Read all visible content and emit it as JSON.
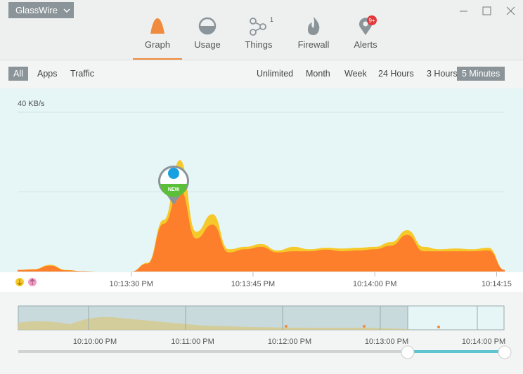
{
  "app": {
    "title": "GlassWire"
  },
  "tabs": [
    {
      "label": "Graph",
      "selected": true
    },
    {
      "label": "Usage",
      "selected": false
    },
    {
      "label": "Things",
      "selected": false
    },
    {
      "label": "Firewall",
      "selected": false
    },
    {
      "label": "Alerts",
      "selected": false
    }
  ],
  "things_badge": "1",
  "alerts_badge": "9+",
  "filters": [
    {
      "label": "All",
      "selected": true
    },
    {
      "label": "Apps",
      "selected": false
    },
    {
      "label": "Traffic",
      "selected": false
    }
  ],
  "ranges": [
    {
      "label": "Unlimited",
      "selected": false
    },
    {
      "label": "Month",
      "selected": false
    },
    {
      "label": "Week",
      "selected": false
    },
    {
      "label": "24 Hours",
      "selected": false
    },
    {
      "label": "3 Hours",
      "selected": false
    },
    {
      "label": "5 Minutes",
      "selected": true
    }
  ],
  "chart_data": {
    "type": "area",
    "x": [
      "10:13:16",
      "10:13:18",
      "10:13:20",
      "10:13:22",
      "10:13:24",
      "10:13:26",
      "10:13:28",
      "10:13:30",
      "10:13:32",
      "10:13:34",
      "10:13:36",
      "10:13:38",
      "10:13:40",
      "10:13:42",
      "10:13:44",
      "10:13:46",
      "10:13:48",
      "10:13:50",
      "10:13:52",
      "10:13:54",
      "10:13:56",
      "10:13:58",
      "10:14:00",
      "10:14:02",
      "10:14:04",
      "10:14:06",
      "10:14:08",
      "10:14:10",
      "10:14:12",
      "10:14:14",
      "10:14:16"
    ],
    "series": [
      {
        "color": "#f6c92b",
        "values": [
          0.4,
          0.6,
          1.7,
          0.4,
          0.1,
          0,
          0,
          0,
          2.2,
          13,
          28,
          10,
          14.4,
          5.6,
          6.2,
          6.9,
          5.3,
          6.2,
          5.6,
          6,
          5.8,
          6,
          6.2,
          7.4,
          10.4,
          6.2,
          5.6,
          5.8,
          5.6,
          6,
          0.4
        ]
      },
      {
        "color": "#fd7f2c",
        "values": [
          0.4,
          0.5,
          1.5,
          0.3,
          0.1,
          0,
          0,
          0,
          2,
          12,
          20.6,
          8.3,
          11.8,
          4.8,
          5.6,
          6.2,
          4.8,
          5.1,
          5.1,
          5.5,
          5.1,
          5.3,
          5.6,
          6.5,
          9.2,
          5.1,
          5.1,
          5.1,
          5.1,
          5.3,
          0.4
        ]
      }
    ],
    "xlim": [
      "10:13:16",
      "10:14:16"
    ],
    "xticks": [
      {
        "value": "10:13:30",
        "label": "10:13:30 PM"
      },
      {
        "value": "10:13:45",
        "label": "10:13:45 PM"
      },
      {
        "value": "10:14:00",
        "label": "10:14:00 PM"
      },
      {
        "value": "10:14:15",
        "label": "10:14:15"
      }
    ],
    "ylim": [
      0,
      46
    ],
    "yticks": [
      {
        "value": 20,
        "label": null
      },
      {
        "value": 40,
        "label": "40 KB/s"
      }
    ],
    "grid": true,
    "marker": {
      "label": "NEW"
    }
  },
  "overview": {
    "labels": [
      "10:10:00 PM",
      "10:11:00 PM",
      "10:12:00 PM",
      "10:13:00 PM",
      "10:14:00 PM"
    ]
  }
}
